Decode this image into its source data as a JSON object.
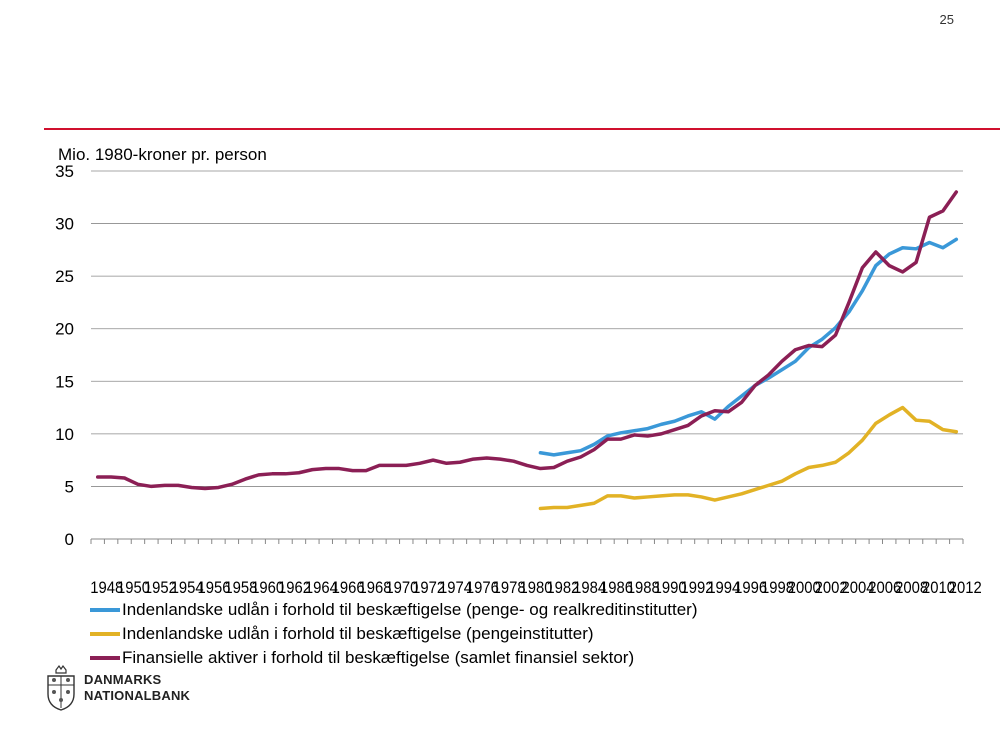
{
  "page": {
    "number": "25"
  },
  "brand": {
    "line1": "DANMARKS",
    "line2": "NATIONALBANK"
  },
  "chart_data": {
    "type": "line",
    "ylabel": "Mio. 1980-kroner pr. person",
    "ylim": [
      0,
      35
    ],
    "yticks": [
      0,
      5,
      10,
      15,
      20,
      25,
      30,
      35
    ],
    "x": [
      1948,
      1949,
      1950,
      1951,
      1952,
      1953,
      1954,
      1955,
      1956,
      1957,
      1958,
      1959,
      1960,
      1961,
      1962,
      1963,
      1964,
      1965,
      1966,
      1967,
      1968,
      1969,
      1970,
      1971,
      1972,
      1973,
      1974,
      1975,
      1976,
      1977,
      1978,
      1979,
      1980,
      1981,
      1982,
      1983,
      1984,
      1985,
      1986,
      1987,
      1988,
      1989,
      1990,
      1991,
      1992,
      1993,
      1994,
      1995,
      1996,
      1997,
      1998,
      1999,
      2000,
      2001,
      2002,
      2003,
      2004,
      2005,
      2006,
      2007,
      2008,
      2009,
      2010,
      2011,
      2012
    ],
    "xtick_labels": [
      "1948",
      "1950",
      "1952",
      "1954",
      "1956",
      "1958",
      "1960",
      "1962",
      "1964",
      "1966",
      "1968",
      "1970",
      "1972",
      "1974",
      "1976",
      "1978",
      "1980",
      "1982",
      "1984",
      "1986",
      "1988",
      "1990",
      "1992",
      "1994",
      "1996",
      "1998",
      "2000",
      "2002",
      "2004",
      "2006",
      "2008",
      "2010",
      "2012"
    ],
    "grid": true,
    "legend_position": "bottom-left",
    "series": [
      {
        "name": "Indenlandske udlån i forhold til beskæftigelse (penge- og realkreditinstitutter)",
        "color": "#3a98d8",
        "values": [
          null,
          null,
          null,
          null,
          null,
          null,
          null,
          null,
          null,
          null,
          null,
          null,
          null,
          null,
          null,
          null,
          null,
          null,
          null,
          null,
          null,
          null,
          null,
          null,
          null,
          null,
          null,
          null,
          null,
          null,
          null,
          null,
          null,
          8.2,
          8.0,
          8.2,
          8.4,
          9.0,
          9.8,
          10.1,
          10.3,
          10.5,
          10.9,
          11.2,
          11.7,
          12.1,
          11.4,
          12.6,
          13.6,
          14.6,
          15.3,
          16.1,
          16.9,
          18.2,
          19.0,
          20.1,
          21.6,
          23.6,
          26.0,
          27.1,
          27.7,
          27.6,
          28.2,
          27.7,
          28.5
        ]
      },
      {
        "name": "Indenlandske udlån i forhold til beskæftigelse (pengeinstitutter)",
        "color": "#e2b225",
        "values": [
          null,
          null,
          null,
          null,
          null,
          null,
          null,
          null,
          null,
          null,
          null,
          null,
          null,
          null,
          null,
          null,
          null,
          null,
          null,
          null,
          null,
          null,
          null,
          null,
          null,
          null,
          null,
          null,
          null,
          null,
          null,
          null,
          null,
          2.9,
          3.0,
          3.0,
          3.2,
          3.4,
          4.1,
          4.1,
          3.9,
          4.0,
          4.1,
          4.2,
          4.2,
          4.0,
          3.7,
          4.0,
          4.3,
          4.7,
          5.1,
          5.5,
          6.2,
          6.8,
          7.0,
          7.3,
          8.2,
          9.4,
          11.0,
          11.8,
          12.5,
          11.3,
          11.2,
          10.4,
          10.2
        ]
      },
      {
        "name": "Finansielle aktiver i forhold til beskæftigelse (samlet finansiel sektor)",
        "color": "#8b1f55",
        "values": [
          5.9,
          5.9,
          5.8,
          5.2,
          5.0,
          5.1,
          5.1,
          4.9,
          4.8,
          4.9,
          5.2,
          5.7,
          6.1,
          6.2,
          6.2,
          6.3,
          6.6,
          6.7,
          6.7,
          6.5,
          6.5,
          7.0,
          7.0,
          7.0,
          7.2,
          7.5,
          7.2,
          7.3,
          7.6,
          7.7,
          7.6,
          7.4,
          7.0,
          6.7,
          6.8,
          7.4,
          7.8,
          8.5,
          9.5,
          9.5,
          9.9,
          9.8,
          10.0,
          10.4,
          10.8,
          11.7,
          12.2,
          12.1,
          13.0,
          14.6,
          15.6,
          16.9,
          18.0,
          18.4,
          18.3,
          19.4,
          22.5,
          25.8,
          27.3,
          26.0,
          25.4,
          26.3,
          30.6,
          31.2,
          33.0
        ]
      }
    ]
  }
}
